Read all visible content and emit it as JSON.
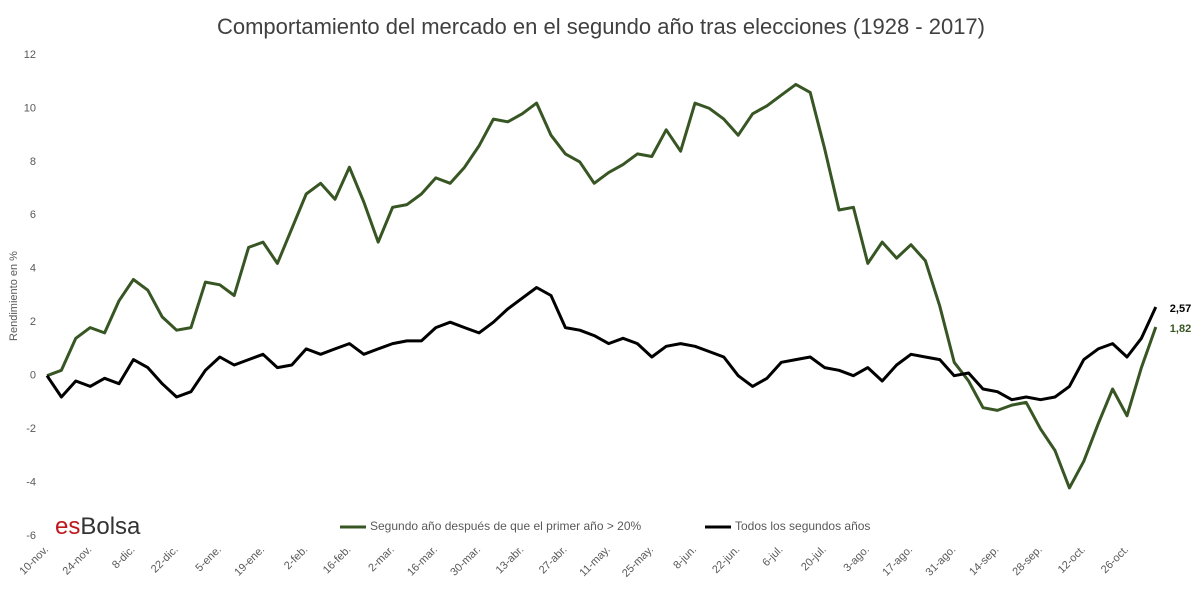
{
  "chart_data": {
    "type": "line",
    "title": "Comportamiento del mercado en el segundo año tras elecciones (1928 - 2017)",
    "y_label": "Rendimiento en %",
    "brand": {
      "prefix": "es",
      "name": "Bolsa"
    },
    "categories": [
      "10-nov.",
      null,
      null,
      "24-nov.",
      null,
      null,
      "8-dic.",
      null,
      null,
      "22-dic.",
      null,
      null,
      "5-ene.",
      null,
      null,
      "19-ene.",
      null,
      null,
      "2-feb.",
      null,
      null,
      "16-feb.",
      null,
      null,
      "2-mar.",
      null,
      null,
      "16-mar.",
      null,
      null,
      "30-mar.",
      null,
      null,
      "13-abr.",
      null,
      null,
      "27-abr.",
      null,
      null,
      "11-may.",
      null,
      null,
      "25-may.",
      null,
      null,
      "8-jun.",
      null,
      null,
      "22-jun.",
      null,
      null,
      "6-jul.",
      null,
      null,
      "20-jul.",
      null,
      null,
      "3-ago.",
      null,
      null,
      "17-ago.",
      null,
      null,
      "31-ago.",
      null,
      null,
      "14-sep.",
      null,
      null,
      "28-sep.",
      null,
      null,
      "12-oct.",
      null,
      null,
      "26-oct.",
      null,
      null
    ],
    "series": [
      {
        "name": "Segundo año después de que el primer año > 20%",
        "color": "#375623",
        "last_label": "1,82",
        "values": [
          0,
          0.2,
          1.4,
          1.8,
          1.6,
          2.8,
          3.6,
          3.2,
          2.2,
          1.7,
          1.8,
          3.5,
          3.4,
          3.0,
          4.8,
          5.0,
          4.2,
          5.5,
          6.8,
          7.2,
          6.6,
          7.8,
          6.5,
          5.0,
          6.3,
          6.4,
          6.8,
          7.4,
          7.2,
          7.8,
          8.6,
          9.6,
          9.5,
          9.8,
          10.2,
          9.0,
          8.3,
          8.0,
          7.2,
          7.6,
          7.9,
          8.3,
          8.2,
          9.2,
          8.4,
          10.2,
          10.0,
          9.6,
          9.0,
          9.8,
          10.1,
          10.5,
          10.9,
          10.6,
          8.5,
          6.2,
          6.3,
          4.2,
          5.0,
          4.4,
          4.9,
          4.3,
          2.6,
          0.5,
          -0.2,
          -1.2,
          -1.3,
          -1.1,
          -1.0,
          -2.0,
          -2.8,
          -4.2,
          -3.2,
          -1.8,
          -0.5,
          -1.5,
          0.3,
          1.82
        ]
      },
      {
        "name": "Todos los segundos años",
        "color": "#000000",
        "last_label": "2,57",
        "values": [
          0,
          -0.8,
          -0.2,
          -0.4,
          -0.1,
          -0.3,
          0.6,
          0.3,
          -0.3,
          -0.8,
          -0.6,
          0.2,
          0.7,
          0.4,
          0.6,
          0.8,
          0.3,
          0.4,
          1.0,
          0.8,
          1.0,
          1.2,
          0.8,
          1.0,
          1.2,
          1.3,
          1.3,
          1.8,
          2.0,
          1.8,
          1.6,
          2.0,
          2.5,
          2.9,
          3.3,
          3.0,
          1.8,
          1.7,
          1.5,
          1.2,
          1.4,
          1.2,
          0.7,
          1.1,
          1.2,
          1.1,
          0.9,
          0.7,
          0.0,
          -0.4,
          -0.1,
          0.5,
          0.6,
          0.7,
          0.3,
          0.2,
          0.0,
          0.3,
          -0.2,
          0.4,
          0.8,
          0.7,
          0.6,
          0.0,
          0.1,
          -0.5,
          -0.6,
          -0.9,
          -0.8,
          -0.9,
          -0.8,
          -0.4,
          0.6,
          1.0,
          1.2,
          0.7,
          1.4,
          2.57
        ]
      }
    ],
    "ylim": [
      -6,
      12
    ],
    "yticks": [
      -6,
      -4,
      -2,
      0,
      2,
      4,
      6,
      8,
      10,
      12
    ],
    "grid": false
  }
}
